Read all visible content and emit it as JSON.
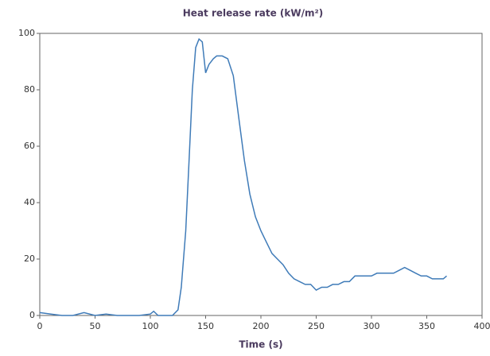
{
  "chart_data": {
    "type": "line",
    "title": "Heat release rate (kW/m²)",
    "x_label": "Time (s)",
    "x": [
      0,
      10,
      20,
      30,
      40,
      50,
      60,
      70,
      80,
      90,
      100,
      103,
      107,
      120,
      125,
      128,
      132,
      135,
      138,
      141,
      144,
      147,
      150,
      153,
      157,
      160,
      165,
      170,
      175,
      180,
      185,
      190,
      195,
      200,
      205,
      210,
      215,
      220,
      225,
      230,
      235,
      240,
      245,
      250,
      255,
      260,
      265,
      270,
      275,
      280,
      285,
      290,
      295,
      300,
      305,
      310,
      315,
      320,
      325,
      330,
      335,
      340,
      345,
      350,
      355,
      360,
      365,
      368
    ],
    "series": [
      {
        "color": "#3f7bb8",
        "values": [
          1,
          0.5,
          0,
          0,
          1,
          0,
          0.5,
          0,
          0,
          0,
          0.5,
          1.5,
          0,
          0,
          2,
          10,
          30,
          55,
          80,
          95,
          98,
          97,
          86,
          89,
          91,
          92,
          92,
          91,
          85,
          70,
          55,
          43,
          35,
          30,
          26,
          22,
          20,
          18,
          15,
          13,
          12,
          11,
          11,
          9,
          10,
          10,
          11,
          11,
          12,
          12,
          14,
          14,
          14,
          14,
          15,
          15,
          15,
          15,
          16,
          17,
          16,
          15,
          14,
          14,
          13,
          13,
          13,
          14
        ]
      }
    ],
    "xlim": [
      0,
      400
    ],
    "xticks": [
      0,
      50,
      100,
      150,
      200,
      250,
      300,
      350,
      400
    ],
    "ylim": [
      0,
      100
    ],
    "yticks": [
      0,
      20,
      40,
      60,
      80,
      100
    ]
  }
}
